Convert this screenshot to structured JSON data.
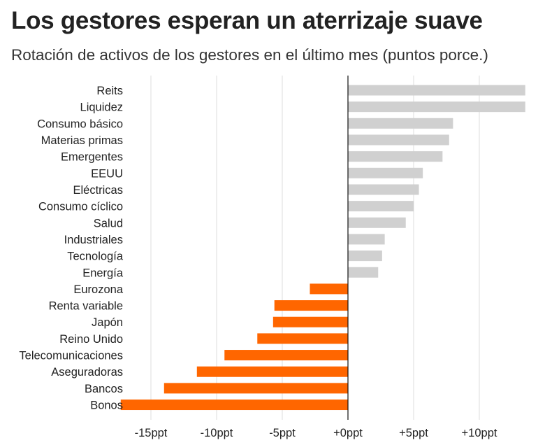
{
  "header": {
    "title": "Los gestores esperan un aterrizaje suave",
    "subtitle": "Rotación de activos de los gestores en el último mes (puntos porce.)"
  },
  "colors": {
    "positive": "#d0d0d0",
    "negative": "#ff6600",
    "grid": "#dcdcdc",
    "zero": "#111111"
  },
  "chart_data": {
    "type": "bar",
    "orientation": "horizontal",
    "title": "Los gestores esperan un aterrizaje suave",
    "subtitle": "Rotación de activos de los gestores en el último mes (puntos porce.)",
    "categories": [
      "Reits",
      "Liquidez",
      "Consumo básico",
      "Materias primas",
      "Emergentes",
      "EEUU",
      "Eléctricas",
      "Consumo cíclico",
      "Salud",
      "Industriales",
      "Tecnología",
      "Energía",
      "Eurozona",
      "Renta variable",
      "Japón",
      "Reino Unido",
      "Telecomunicaciones",
      "Aseguradoras",
      "Bancos",
      "Bonos"
    ],
    "values": [
      13.5,
      13.5,
      8,
      7.7,
      7.2,
      5.7,
      5.4,
      5,
      4.4,
      2.8,
      2.6,
      2.3,
      -2.9,
      -5.6,
      -5.7,
      -6.9,
      -9.4,
      -11.5,
      -14,
      -17.3
    ],
    "xlim": [
      -17.3,
      13.5
    ],
    "ticks": [
      -15,
      -10,
      -5,
      0,
      5,
      10
    ],
    "tick_labels": [
      "-15ppt",
      "-10ppt",
      "-5ppt",
      "+0ppt",
      "+5ppt",
      "+10ppt"
    ],
    "xlabel": "",
    "ylabel": "",
    "grid": true,
    "legend": "none"
  }
}
